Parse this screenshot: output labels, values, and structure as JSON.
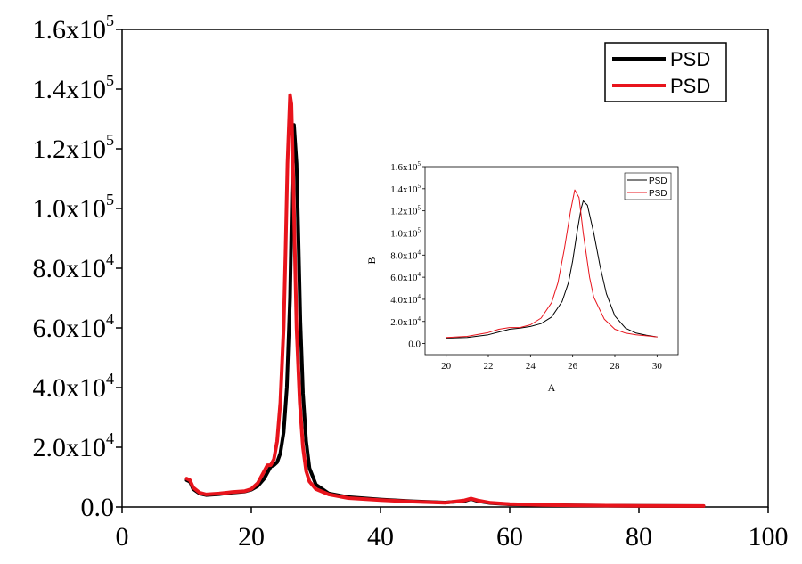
{
  "chart_data": [
    {
      "type": "line",
      "xlim": [
        0,
        100
      ],
      "ylim": [
        0,
        160000
      ],
      "x_ticks": [
        "0",
        "20",
        "40",
        "60",
        "80",
        "100"
      ],
      "y_ticks": [
        {
          "mantissa": "0.0",
          "exp": ""
        },
        {
          "mantissa": "2.0x10",
          "exp": "4"
        },
        {
          "mantissa": "4.0x10",
          "exp": "4"
        },
        {
          "mantissa": "6.0x10",
          "exp": "4"
        },
        {
          "mantissa": "8.0x10",
          "exp": "4"
        },
        {
          "mantissa": "1.0x10",
          "exp": "5"
        },
        {
          "mantissa": "1.2x10",
          "exp": "5"
        },
        {
          "mantissa": "1.4x10",
          "exp": "5"
        },
        {
          "mantissa": "1.6x10",
          "exp": "5"
        }
      ],
      "legend_position": "top-right",
      "grid": false,
      "series": [
        {
          "name": "PSD",
          "color": "#000000",
          "x": [
            10,
            10.5,
            11,
            12,
            13,
            15,
            17,
            19,
            20,
            21,
            22,
            22.5,
            23,
            23.5,
            24,
            24.5,
            25,
            25.5,
            26,
            26.3,
            26.6,
            27,
            27.3,
            27.6,
            28,
            28.5,
            29,
            30,
            32,
            35,
            40,
            45,
            50,
            53,
            54,
            55,
            57,
            60,
            65,
            70,
            80,
            90
          ],
          "y": [
            9000,
            8500,
            6000,
            4500,
            4000,
            4300,
            4800,
            5200,
            5800,
            7000,
            9500,
            11500,
            13500,
            14000,
            15000,
            18000,
            25000,
            40000,
            70000,
            105000,
            128000,
            115000,
            90000,
            62000,
            38000,
            22000,
            13000,
            7500,
            4500,
            3300,
            2500,
            1900,
            1500,
            2000,
            2700,
            2000,
            1300,
            900,
            650,
            500,
            350,
            300
          ]
        },
        {
          "name": "PSD",
          "color": "#e8141c",
          "x": [
            10,
            10.5,
            11,
            12,
            13,
            15,
            17,
            19,
            20,
            21,
            22,
            22.5,
            23,
            23.5,
            24,
            24.5,
            25,
            25.3,
            25.6,
            26,
            26.2,
            26.5,
            26.8,
            27,
            27.5,
            28,
            28.5,
            29,
            30,
            32,
            35,
            40,
            45,
            50,
            53,
            54,
            55,
            57,
            60,
            65,
            70,
            80,
            90
          ],
          "y": [
            9500,
            9000,
            6500,
            4800,
            4200,
            4500,
            5000,
            5300,
            6000,
            8000,
            12000,
            14000,
            14000,
            16000,
            22000,
            35000,
            60000,
            85000,
            115000,
            138000,
            135000,
            110000,
            80000,
            60000,
            35000,
            20000,
            12000,
            8500,
            6000,
            4200,
            3000,
            2300,
            1800,
            1400,
            2200,
            2800,
            2200,
            1400,
            950,
            700,
            550,
            400,
            320
          ]
        }
      ]
    },
    {
      "type": "line",
      "xlabel": "A",
      "ylabel": "B",
      "xlim": [
        19,
        31
      ],
      "ylim": [
        -10000,
        160000
      ],
      "x_ticks": [
        "20",
        "22",
        "24",
        "26",
        "28",
        "30"
      ],
      "y_ticks": [
        {
          "mantissa": "0.0",
          "exp": ""
        },
        {
          "mantissa": "2.0x10",
          "exp": "4"
        },
        {
          "mantissa": "4.0x10",
          "exp": "4"
        },
        {
          "mantissa": "6.0x10",
          "exp": "4"
        },
        {
          "mantissa": "8.0x10",
          "exp": "4"
        },
        {
          "mantissa": "1.0x10",
          "exp": "5"
        },
        {
          "mantissa": "1.2x10",
          "exp": "5"
        },
        {
          "mantissa": "1.4x10",
          "exp": "5"
        },
        {
          "mantissa": "1.6x10",
          "exp": "5"
        }
      ],
      "legend_position": "top-right",
      "grid": false,
      "series": [
        {
          "name": "PSD",
          "color": "#000000",
          "x": [
            20,
            21,
            22,
            22.5,
            23,
            23.5,
            24,
            24.5,
            25,
            25.5,
            25.8,
            26,
            26.2,
            26.4,
            26.5,
            26.7,
            27,
            27.3,
            27.6,
            28,
            28.5,
            29,
            29.5,
            30
          ],
          "y": [
            5000,
            5500,
            8000,
            10500,
            13000,
            14000,
            15500,
            18000,
            24000,
            38000,
            55000,
            75000,
            100000,
            122000,
            129000,
            125000,
            100000,
            70000,
            45000,
            25000,
            14000,
            9500,
            7500,
            6000
          ]
        },
        {
          "name": "PSD",
          "color": "#e8141c",
          "x": [
            20,
            21,
            22,
            22.5,
            23,
            23.5,
            24,
            24.5,
            25,
            25.3,
            25.6,
            25.9,
            26.1,
            26.3,
            26.5,
            26.8,
            27,
            27.5,
            28,
            28.5,
            29,
            29.5,
            30
          ],
          "y": [
            5500,
            6500,
            10000,
            13000,
            14500,
            14500,
            17000,
            23000,
            37000,
            55000,
            85000,
            120000,
            139000,
            132000,
            100000,
            60000,
            42000,
            22000,
            13000,
            9500,
            8000,
            7000,
            6000
          ]
        }
      ]
    }
  ]
}
